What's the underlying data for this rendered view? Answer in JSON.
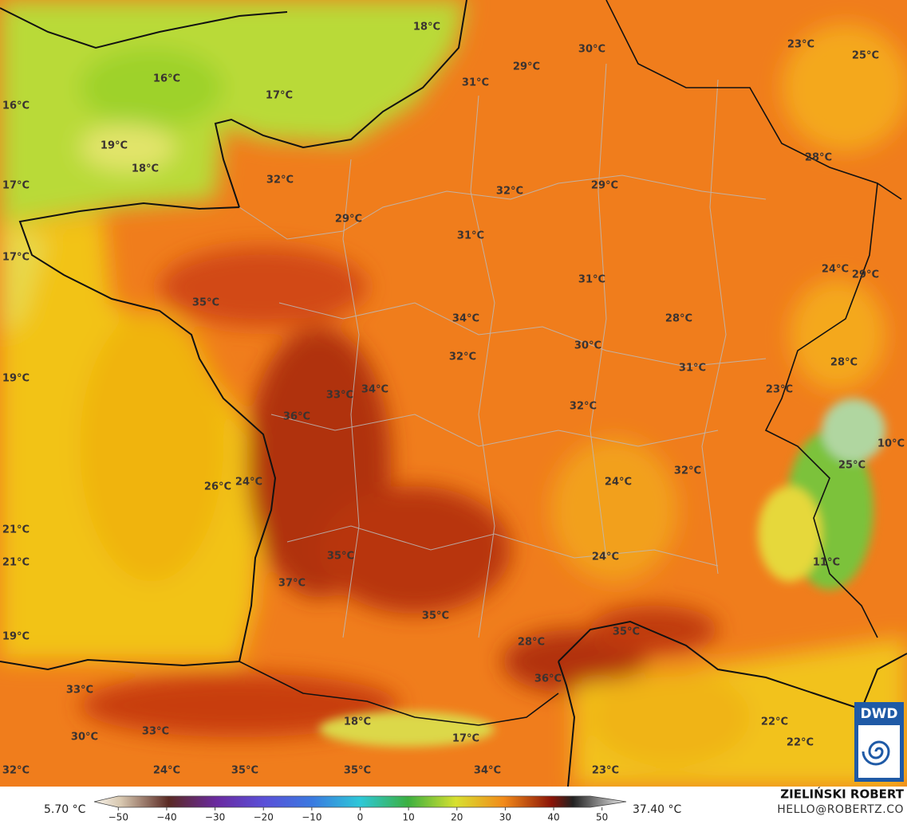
{
  "map": {
    "labels": [
      "18°C",
      "30°C",
      "23°C",
      "25°C",
      "29°C",
      "31°C",
      "16°C",
      "17°C",
      "16°C",
      "19°C",
      "18°C",
      "28°C",
      "17°C",
      "32°C",
      "32°C",
      "29°C",
      "29°C",
      "31°C",
      "17°C",
      "24°C",
      "29°C",
      "31°C",
      "35°C",
      "34°C",
      "28°C",
      "32°C",
      "30°C",
      "31°C",
      "28°C",
      "19°C",
      "33°C",
      "34°C",
      "23°C",
      "36°C",
      "32°C",
      "10°C",
      "25°C",
      "26°C",
      "24°C",
      "24°C",
      "32°C",
      "21°C",
      "21°C",
      "35°C",
      "24°C",
      "11°C",
      "37°C",
      "35°C",
      "35°C",
      "19°C",
      "28°C",
      "36°C",
      "33°C",
      "30°C",
      "33°C",
      "18°C",
      "17°C",
      "22°C",
      "22°C",
      "32°C",
      "24°C",
      "35°C",
      "35°C",
      "34°C",
      "23°C"
    ]
  },
  "colorbar": {
    "min_label": "5.70 °C",
    "max_label": "37.40 °C",
    "range": [
      -55,
      55
    ],
    "ticks": [
      {
        "value": -50,
        "label": "−50"
      },
      {
        "value": -40,
        "label": "−40"
      },
      {
        "value": -30,
        "label": "−30"
      },
      {
        "value": -20,
        "label": "−20"
      },
      {
        "value": -10,
        "label": "−10"
      },
      0,
      10,
      20,
      30,
      40,
      50
    ]
  },
  "credit": {
    "name": "ZIELIŃSKI ROBERT",
    "email": "HELLO@ROBERTZ.CO",
    "logo": "DWD"
  }
}
